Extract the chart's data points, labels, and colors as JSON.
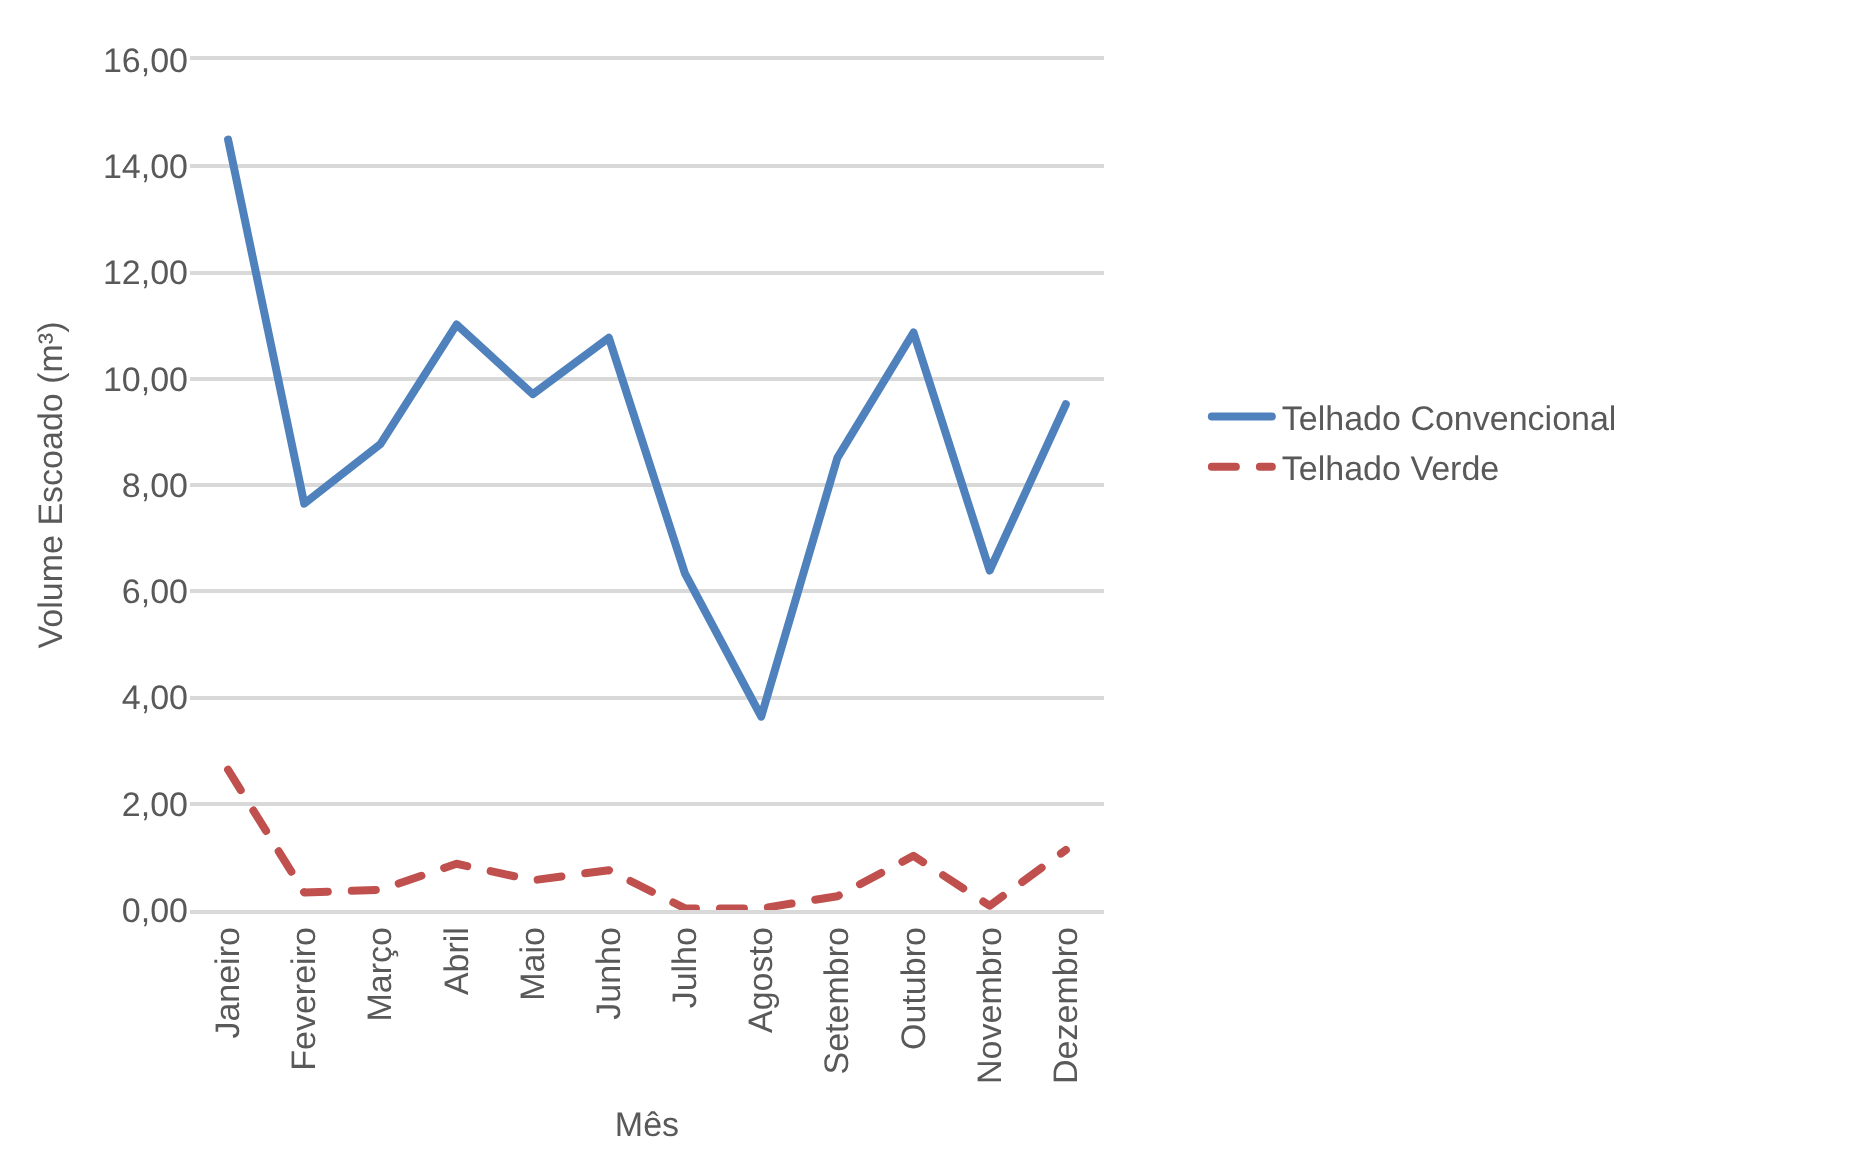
{
  "chart_data": {
    "type": "line",
    "xlabel": "Mês",
    "ylabel": "Volume Escoado (m³)",
    "categories": [
      "Janeiro",
      "Fevereiro",
      "Março",
      "Abril",
      "Maio",
      "Junho",
      "Julho",
      "Agosto",
      "Setembro",
      "Outubro",
      "Novembro",
      "Dezembro"
    ],
    "series": [
      {
        "name": "Telhado Convencional",
        "color": "#4f81bd",
        "line_style": "solid",
        "values": [
          14.5,
          7.65,
          8.77,
          11.02,
          9.71,
          10.77,
          6.33,
          3.64,
          8.51,
          10.87,
          6.39,
          9.52
        ]
      },
      {
        "name": "Telhado Verde",
        "color": "#c0504d",
        "line_style": "dashed",
        "values": [
          2.64,
          0.33,
          0.38,
          0.87,
          0.56,
          0.75,
          0.03,
          0.03,
          0.26,
          1.02,
          0.08,
          1.13
        ]
      }
    ],
    "ylim": [
      0,
      16
    ],
    "yticks": [
      {
        "value": 0,
        "label": "0,00"
      },
      {
        "value": 2,
        "label": "2,00"
      },
      {
        "value": 4,
        "label": "4,00"
      },
      {
        "value": 6,
        "label": "6,00"
      },
      {
        "value": 8,
        "label": "8,00"
      },
      {
        "value": 10,
        "label": "10,00"
      },
      {
        "value": 12,
        "label": "12,00"
      },
      {
        "value": 14,
        "label": "14,00"
      },
      {
        "value": 16,
        "label": "16,00"
      }
    ],
    "grid": "y",
    "legend": "right",
    "marker": "none"
  }
}
